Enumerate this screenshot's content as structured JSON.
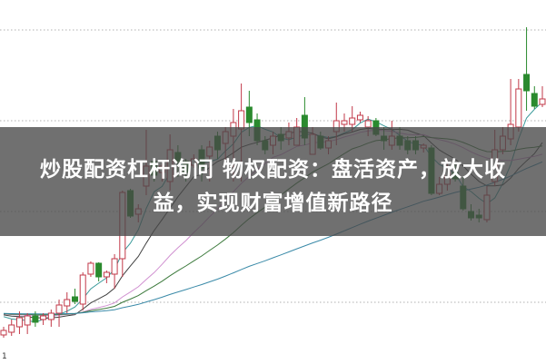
{
  "headline": {
    "line1": "炒股配资杠杆询问 物权配资：盘活资产，放大收",
    "line2": "益，实现财富增值新路径"
  },
  "corner_label": "1",
  "chart_data": {
    "type": "candlestick",
    "grid": "horizontal-dotted",
    "ylim": [
      0,
      400
    ],
    "colors": {
      "up": "#c23848",
      "down": "#2a8a2e",
      "grid": "#b0b0b0",
      "banner": "#484848"
    },
    "moving_averages": [
      {
        "period": 5,
        "color": "#3a9a9a"
      },
      {
        "period": 10,
        "color": "#404040"
      },
      {
        "period": 20,
        "color": "#d090d0"
      },
      {
        "period": 30,
        "color": "#3c7a3c"
      },
      {
        "period": 60,
        "color": "#3a8aa8"
      }
    ],
    "ohlc": [
      [
        31,
        40,
        28,
        36
      ],
      [
        34,
        48,
        30,
        42
      ],
      [
        40,
        57,
        32,
        50
      ],
      [
        42,
        55,
        32,
        52
      ],
      [
        52,
        57,
        40,
        45
      ],
      [
        48,
        55,
        42,
        52
      ],
      [
        48,
        59,
        40,
        55
      ],
      [
        55,
        70,
        40,
        64
      ],
      [
        63,
        78,
        55,
        70
      ],
      [
        73,
        82,
        65,
        68
      ],
      [
        65,
        100,
        58,
        97
      ],
      [
        98,
        112,
        95,
        110
      ],
      [
        110,
        111,
        90,
        95
      ],
      [
        95,
        102,
        88,
        100
      ],
      [
        98,
        120,
        82,
        115
      ],
      [
        115,
        190,
        95,
        188
      ],
      [
        190,
        192,
        160,
        162
      ],
      [
        164,
        175,
        155,
        170
      ],
      [
        195,
        257,
        185,
        217
      ],
      [
        222,
        225,
        200,
        207
      ],
      [
        210,
        220,
        200,
        217
      ],
      [
        200,
        252,
        190,
        235
      ],
      [
        232,
        240,
        205,
        222
      ],
      [
        222,
        225,
        200,
        210
      ],
      [
        218,
        230,
        215,
        225
      ],
      [
        235,
        240,
        200,
        215
      ],
      [
        228,
        245,
        200,
        238
      ],
      [
        250,
        255,
        225,
        235
      ],
      [
        242,
        260,
        220,
        255
      ],
      [
        250,
        280,
        200,
        265
      ],
      [
        258,
        308,
        200,
        278
      ],
      [
        282,
        300,
        250,
        265
      ],
      [
        268,
        275,
        240,
        245
      ],
      [
        245,
        250,
        230,
        235
      ],
      [
        240,
        255,
        230,
        250
      ],
      [
        252,
        260,
        235,
        245
      ],
      [
        248,
        265,
        240,
        255
      ],
      [
        240,
        270,
        240,
        260
      ],
      [
        273,
        293,
        240,
        248
      ],
      [
        230,
        260,
        230,
        252
      ],
      [
        250,
        255,
        235,
        237
      ],
      [
        237,
        250,
        230,
        245
      ],
      [
        255,
        287,
        240,
        267
      ],
      [
        263,
        275,
        255,
        267
      ],
      [
        263,
        283,
        255,
        270
      ],
      [
        268,
        277,
        265,
        273
      ],
      [
        260,
        272,
        250,
        267
      ],
      [
        267,
        270,
        250,
        252
      ],
      [
        250,
        260,
        235,
        245
      ],
      [
        240,
        267,
        235,
        250
      ],
      [
        250,
        260,
        235,
        240
      ],
      [
        245,
        250,
        230,
        235
      ],
      [
        245,
        250,
        230,
        235
      ],
      [
        237,
        242,
        232,
        240
      ],
      [
        237,
        240,
        185,
        187
      ],
      [
        187,
        205,
        185,
        197
      ],
      [
        197,
        220,
        190,
        215
      ],
      [
        210,
        220,
        200,
        203
      ],
      [
        195,
        205,
        168,
        170
      ],
      [
        167,
        175,
        157,
        160
      ],
      [
        163,
        170,
        155,
        160
      ],
      [
        158,
        195,
        155,
        185
      ],
      [
        200,
        257,
        195,
        235
      ],
      [
        235,
        260,
        230,
        250
      ],
      [
        247,
        313,
        240,
        263
      ],
      [
        260,
        313,
        255,
        302
      ],
      [
        318,
        370,
        278,
        300
      ],
      [
        297,
        305,
        280,
        283
      ],
      [
        285,
        305,
        282,
        291
      ]
    ]
  }
}
